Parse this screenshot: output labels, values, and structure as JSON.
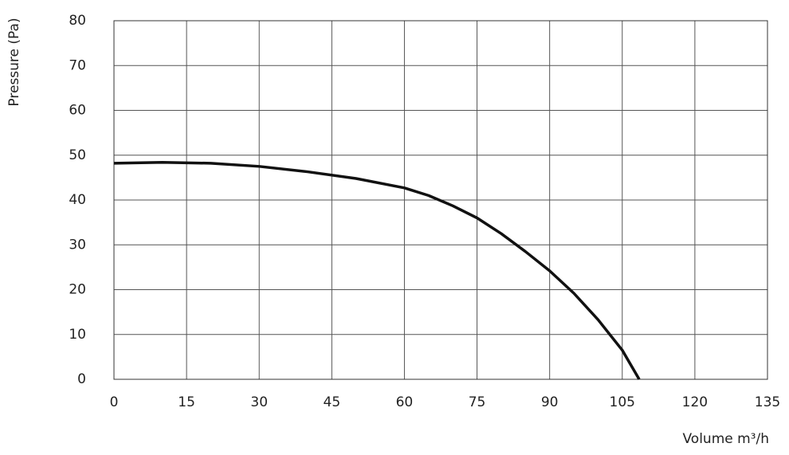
{
  "chart_data": {
    "type": "line",
    "x_label": "Volume m³/h",
    "y_label": "Pressure (Pa)",
    "x": [
      0,
      10,
      20,
      30,
      40,
      50,
      60,
      65,
      70,
      75,
      80,
      85,
      90,
      95,
      100,
      105,
      108.5
    ],
    "values": [
      48.2,
      48.4,
      48.2,
      47.5,
      46.3,
      44.8,
      42.7,
      41,
      38.7,
      36,
      32.5,
      28.5,
      24.2,
      19.2,
      13.3,
      6.5,
      0
    ],
    "color": "#111111",
    "xlim": [
      0,
      135
    ],
    "xticks": [
      0,
      15,
      30,
      45,
      60,
      75,
      90,
      105,
      120,
      135
    ],
    "ylim": [
      0,
      80
    ],
    "yticks": [
      0,
      10,
      20,
      30,
      40,
      50,
      60,
      70,
      80
    ],
    "grid": true
  }
}
